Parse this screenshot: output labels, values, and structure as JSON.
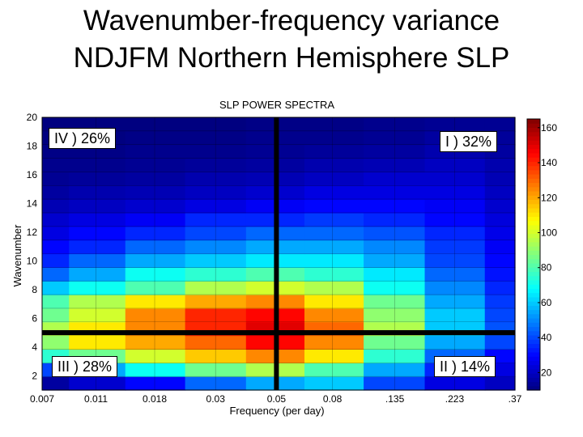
{
  "slide": {
    "title_line1": "Wavenumber-frequency variance",
    "title_line2": "NDJFM Northern Hemisphere SLP"
  },
  "chart_data": {
    "type": "heatmap",
    "title": "SLP POWER SPECTRA",
    "xlabel": "Frequency (per day)",
    "ylabel": "Wavenumber",
    "x_ticks": [
      "0.007",
      "0.011",
      "0.018",
      "0.03",
      "0.05",
      "0.08",
      ".135",
      ".223",
      ".37"
    ],
    "y_ticks": [
      "2",
      "4",
      "6",
      "8",
      "10",
      "12",
      "14",
      "16",
      "18",
      "20"
    ],
    "ylim": [
      1,
      20
    ],
    "colorbar": {
      "ticks": [
        "20",
        "40",
        "60",
        "80",
        "100",
        "120",
        "140",
        "160"
      ],
      "range": [
        10,
        165
      ]
    },
    "quadrant_labels": {
      "top_left": "IV ) 26%",
      "top_right": "I ) 32%",
      "bottom_left": "III ) 28%",
      "bottom_right": "II ) 14%"
    },
    "dividers": {
      "frequency": 0.05,
      "wavenumber": 5
    },
    "rows": [
      {
        "k": 1,
        "values": [
          15,
          22,
          30,
          45,
          55,
          60,
          40,
          25,
          20
        ]
      },
      {
        "k": 2,
        "values": [
          40,
          55,
          70,
          85,
          95,
          80,
          55,
          35,
          25
        ]
      },
      {
        "k": 3,
        "values": [
          75,
          85,
          100,
          115,
          125,
          110,
          75,
          45,
          30
        ]
      },
      {
        "k": 4,
        "values": [
          90,
          110,
          120,
          130,
          145,
          125,
          85,
          55,
          40
        ]
      },
      {
        "k": 5,
        "values": [
          95,
          110,
          125,
          140,
          150,
          130,
          95,
          60,
          42
        ]
      },
      {
        "k": 6,
        "values": [
          85,
          100,
          125,
          140,
          145,
          125,
          90,
          60,
          40
        ]
      },
      {
        "k": 7,
        "values": [
          80,
          95,
          110,
          120,
          125,
          110,
          85,
          55,
          38
        ]
      },
      {
        "k": 8,
        "values": [
          60,
          70,
          80,
          95,
          100,
          95,
          70,
          50,
          35
        ]
      },
      {
        "k": 9,
        "values": [
          45,
          55,
          70,
          75,
          80,
          75,
          65,
          45,
          32
        ]
      },
      {
        "k": 10,
        "values": [
          35,
          45,
          55,
          60,
          65,
          65,
          55,
          40,
          30
        ]
      },
      {
        "k": 11,
        "values": [
          30,
          35,
          45,
          50,
          55,
          55,
          50,
          38,
          28
        ]
      },
      {
        "k": 12,
        "values": [
          25,
          30,
          35,
          40,
          45,
          45,
          42,
          35,
          26
        ]
      },
      {
        "k": 13,
        "values": [
          22,
          25,
          28,
          35,
          35,
          38,
          35,
          30,
          24
        ]
      },
      {
        "k": 14,
        "values": [
          18,
          20,
          22,
          25,
          28,
          30,
          30,
          28,
          22
        ]
      },
      {
        "k": 15,
        "values": [
          15,
          17,
          18,
          20,
          22,
          25,
          25,
          25,
          20
        ]
      },
      {
        "k": 16,
        "values": [
          13,
          14,
          15,
          17,
          18,
          20,
          22,
          22,
          18
        ]
      },
      {
        "k": 17,
        "values": [
          12,
          12,
          13,
          14,
          15,
          17,
          18,
          20,
          17
        ]
      },
      {
        "k": 18,
        "values": [
          11,
          11,
          12,
          12,
          13,
          14,
          15,
          17,
          15
        ]
      },
      {
        "k": 19,
        "values": [
          10,
          10,
          11,
          11,
          12,
          12,
          13,
          15,
          14
        ]
      },
      {
        "k": 20,
        "values": [
          10,
          10,
          10,
          10,
          11,
          11,
          12,
          13,
          13
        ]
      }
    ]
  }
}
